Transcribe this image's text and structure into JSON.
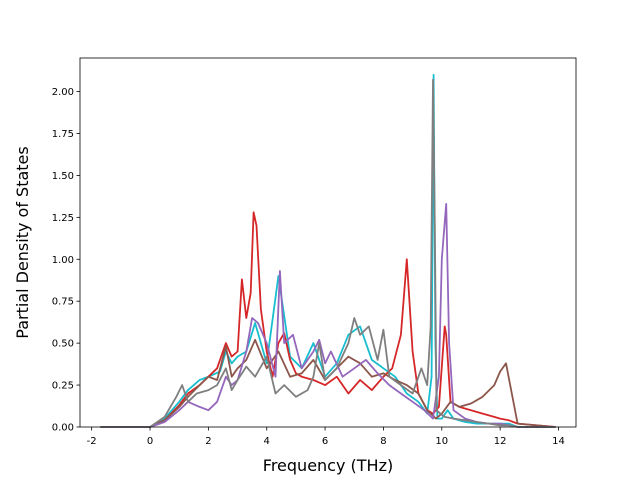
{
  "chart_data": {
    "type": "line",
    "title": "",
    "xlabel": "Frequency (THz)",
    "ylabel": "Partial Density of States",
    "xlim": [
      -2.4,
      14.6
    ],
    "ylim": [
      0,
      2.2
    ],
    "xticks": [
      "-2",
      "0",
      "2",
      "4",
      "6",
      "8",
      "10",
      "12",
      "14"
    ],
    "xtick_values": [
      -2,
      0,
      2,
      4,
      6,
      8,
      10,
      12,
      14
    ],
    "yticks": [
      "0.00",
      "0.25",
      "0.50",
      "0.75",
      "1.00",
      "1.25",
      "1.50",
      "1.75",
      "2.00"
    ],
    "ytick_values": [
      0,
      0.25,
      0.5,
      0.75,
      1.0,
      1.25,
      1.5,
      1.75,
      2.0
    ],
    "grid": false,
    "series": [
      {
        "color": "#17becf",
        "x": [
          -1.7,
          0,
          0.5,
          1.0,
          1.3,
          1.7,
          2.0,
          2.4,
          2.6,
          2.8,
          3.0,
          3.3,
          3.6,
          4.0,
          4.4,
          4.8,
          5.2,
          5.6,
          6.0,
          6.4,
          6.8,
          7.2,
          7.6,
          8.0,
          8.4,
          8.8,
          9.2,
          9.5,
          9.65,
          9.72,
          9.78,
          9.85,
          10.0,
          10.2,
          10.4,
          10.8,
          11.2,
          11.6,
          12.0,
          12.3,
          12.6,
          13.9
        ],
        "y": [
          0,
          0,
          0.05,
          0.15,
          0.22,
          0.28,
          0.3,
          0.33,
          0.45,
          0.38,
          0.42,
          0.45,
          0.62,
          0.38,
          0.9,
          0.42,
          0.35,
          0.5,
          0.3,
          0.38,
          0.55,
          0.6,
          0.4,
          0.35,
          0.3,
          0.2,
          0.15,
          0.08,
          0.3,
          2.1,
          0.5,
          0.05,
          0.05,
          0.1,
          0.05,
          0.03,
          0.02,
          0.02,
          0.02,
          0.02,
          0,
          0
        ]
      },
      {
        "color": "#d62728",
        "x": [
          -1.7,
          0,
          0.5,
          1.0,
          1.3,
          1.7,
          2.0,
          2.3,
          2.6,
          2.8,
          3.0,
          3.15,
          3.3,
          3.45,
          3.55,
          3.65,
          3.8,
          4.0,
          4.2,
          4.4,
          4.6,
          4.8,
          5.0,
          5.2,
          5.6,
          6.0,
          6.4,
          6.8,
          7.2,
          7.6,
          8.0,
          8.3,
          8.6,
          8.8,
          9.0,
          9.2,
          9.5,
          9.7,
          9.9,
          10.1,
          10.15,
          10.3,
          10.6,
          11.0,
          11.4,
          11.8,
          12.0,
          12.3,
          12.6,
          13.9
        ],
        "y": [
          0,
          0,
          0.04,
          0.13,
          0.2,
          0.25,
          0.3,
          0.35,
          0.5,
          0.42,
          0.45,
          0.88,
          0.65,
          0.8,
          1.28,
          1.2,
          0.7,
          0.45,
          0.3,
          0.5,
          0.56,
          0.4,
          0.32,
          0.3,
          0.28,
          0.25,
          0.3,
          0.2,
          0.28,
          0.22,
          0.3,
          0.35,
          0.55,
          1.0,
          0.45,
          0.2,
          0.1,
          0.08,
          0.12,
          0.6,
          0.55,
          0.15,
          0.12,
          0.1,
          0.08,
          0.06,
          0.05,
          0.04,
          0.02,
          0
        ]
      },
      {
        "color": "#8c564b",
        "x": [
          -1.7,
          0,
          0.5,
          1.0,
          1.3,
          1.7,
          2.0,
          2.3,
          2.6,
          2.8,
          3.0,
          3.3,
          3.6,
          4.0,
          4.4,
          4.8,
          5.2,
          5.6,
          6.0,
          6.4,
          6.8,
          7.2,
          7.6,
          8.0,
          8.4,
          8.8,
          9.2,
          9.5,
          9.8,
          10.0,
          10.3,
          10.6,
          11.0,
          11.4,
          11.8,
          12.0,
          12.2,
          12.4,
          12.6,
          13.9
        ],
        "y": [
          0,
          0,
          0.04,
          0.12,
          0.18,
          0.25,
          0.3,
          0.28,
          0.48,
          0.3,
          0.35,
          0.4,
          0.52,
          0.35,
          0.45,
          0.3,
          0.32,
          0.4,
          0.28,
          0.35,
          0.42,
          0.38,
          0.3,
          0.32,
          0.28,
          0.25,
          0.2,
          0.1,
          0.05,
          0.08,
          0.15,
          0.12,
          0.14,
          0.18,
          0.25,
          0.33,
          0.38,
          0.2,
          0.02,
          0
        ]
      },
      {
        "color": "#9467bd",
        "x": [
          -1.7,
          0,
          0.5,
          1.0,
          1.3,
          1.7,
          2.0,
          2.3,
          2.6,
          2.8,
          3.0,
          3.3,
          3.5,
          3.7,
          4.0,
          4.3,
          4.45,
          4.6,
          4.9,
          5.2,
          5.6,
          5.8,
          6.0,
          6.2,
          6.6,
          7.0,
          7.4,
          7.8,
          8.2,
          8.6,
          9.0,
          9.4,
          9.7,
          9.9,
          10.0,
          10.15,
          10.25,
          10.4,
          10.8,
          11.2,
          11.6,
          12.0,
          12.3,
          12.6,
          13.9
        ],
        "y": [
          0,
          0,
          0.03,
          0.1,
          0.15,
          0.12,
          0.1,
          0.15,
          0.3,
          0.25,
          0.28,
          0.45,
          0.65,
          0.62,
          0.5,
          0.3,
          0.93,
          0.5,
          0.55,
          0.35,
          0.45,
          0.52,
          0.38,
          0.45,
          0.3,
          0.35,
          0.4,
          0.32,
          0.25,
          0.2,
          0.15,
          0.1,
          0.05,
          0.3,
          1.0,
          1.33,
          0.5,
          0.1,
          0.05,
          0.03,
          0.02,
          0.02,
          0.01,
          0,
          0
        ]
      },
      {
        "color": "#7f7f7f",
        "x": [
          -1.7,
          0,
          0.5,
          0.9,
          1.1,
          1.3,
          1.6,
          2.0,
          2.3,
          2.6,
          2.8,
          3.0,
          3.3,
          3.6,
          4.0,
          4.3,
          4.6,
          5.0,
          5.4,
          5.6,
          5.8,
          6.0,
          6.4,
          6.8,
          7.0,
          7.2,
          7.5,
          7.8,
          8.0,
          8.2,
          8.6,
          9.0,
          9.3,
          9.5,
          9.62,
          9.7,
          9.76,
          9.82,
          9.95,
          10.1,
          10.4,
          10.8,
          11.2,
          11.6,
          12.0,
          12.3,
          12.6,
          13.9
        ],
        "y": [
          0,
          0,
          0.06,
          0.18,
          0.25,
          0.15,
          0.2,
          0.22,
          0.25,
          0.35,
          0.22,
          0.28,
          0.36,
          0.3,
          0.42,
          0.2,
          0.25,
          0.18,
          0.22,
          0.3,
          0.5,
          0.28,
          0.35,
          0.5,
          0.65,
          0.55,
          0.6,
          0.4,
          0.58,
          0.3,
          0.25,
          0.2,
          0.35,
          0.25,
          0.6,
          2.07,
          1.2,
          0.1,
          0.08,
          0.06,
          0.05,
          0.04,
          0.03,
          0.02,
          0.01,
          0.01,
          0,
          0
        ]
      }
    ]
  }
}
